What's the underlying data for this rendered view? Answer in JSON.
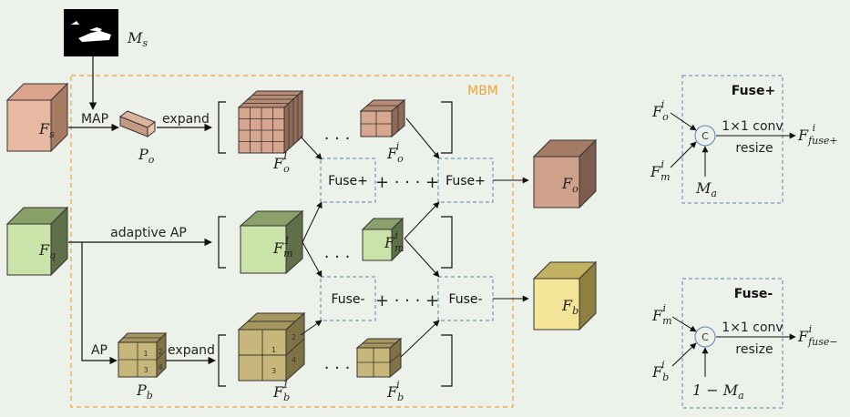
{
  "labels": {
    "Ms": "M",
    "Ms_sub": "s",
    "Fs": "F",
    "Fs_sub": "s",
    "Fq": "F",
    "Fq_sub": "q",
    "Po": "P",
    "Po_sub": "o",
    "Pb": "P",
    "Pb_sub": "b",
    "Fo1": "F",
    "Fo1_sub": "o",
    "Fo1_sup": "1",
    "Foi": "F",
    "Foi_sub": "o",
    "Foi_sup": "i",
    "Fm1": "F",
    "Fm1_sub": "m",
    "Fm1_sup": "1",
    "Fmi": "F",
    "Fmi_sub": "m",
    "Fmi_sup": "i",
    "Fb1": "F",
    "Fb1_sub": "b",
    "Fb1_sup": "1",
    "Fbi": "F",
    "Fbi_sub": "b",
    "Fbi_sup": "i",
    "Fo": "F",
    "Fo_sub": "o",
    "Fb": "F",
    "Fb_sub": "b",
    "map": "MAP",
    "expand_top": "expand",
    "expand_bottom": "expand",
    "adaptive_ap": "adaptive AP",
    "ap": "AP",
    "mbm": "MBM",
    "fuse_plus": "Fuse+",
    "fuse_minus": "Fuse-",
    "dots": "· · ·",
    "plus": "+",
    "plus_dots": "+ · · · +",
    "grid_nums": [
      "1",
      "2",
      "3",
      "4"
    ]
  },
  "fuse_plus_panel": {
    "title": "Fuse+",
    "in_top": "F",
    "in_top_sub": "o",
    "in_top_sup": "i",
    "in_left": "F",
    "in_left_sub": "m",
    "in_left_sup": "i",
    "in_bottom": "M",
    "in_bottom_sub": "a",
    "concat": "C",
    "op1": "1×1 conv",
    "op2": "resize",
    "out": "F",
    "out_sub": "fuse+",
    "out_sup": "i"
  },
  "fuse_minus_panel": {
    "title": "Fuse-",
    "in_top": "F",
    "in_top_sub": "m",
    "in_top_sup": "i",
    "in_left": "F",
    "in_left_sub": "b",
    "in_left_sup": "i",
    "in_bottom": "1 − M",
    "in_bottom_sub": "a",
    "concat": "C",
    "op1": "1×1 conv",
    "op2": "resize",
    "out": "F",
    "out_sub": "fuse−",
    "out_sup": "i"
  },
  "colors": {
    "brown": "#c49a84",
    "green": "#b7d39a",
    "khaki": "#c8b77a",
    "yellow": "#e7d77a",
    "dashed_blue": "#5d82b5",
    "mbm_orange": "#f0a13a"
  }
}
